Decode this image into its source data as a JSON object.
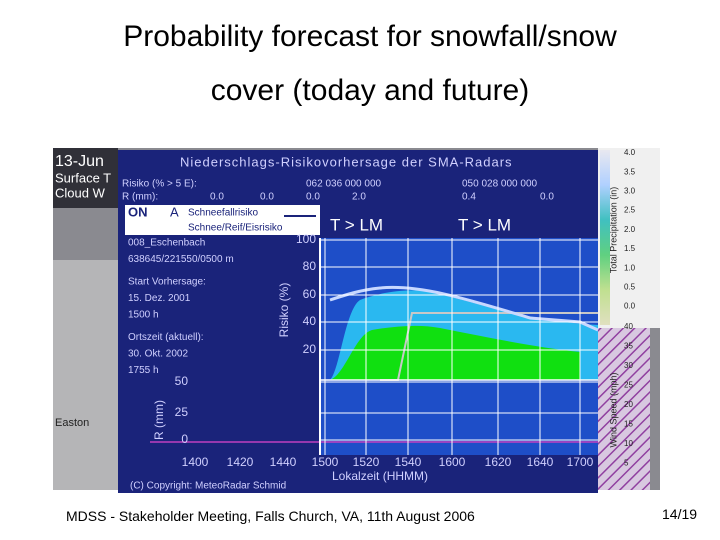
{
  "slide": {
    "title_lines": [
      "Probability forecast for snowfall/snow",
      "cover (today and future)"
    ],
    "footer": "MDSS - Stakeholder Meeting, Falls Church, VA,  11th August 2006",
    "page": "14/19",
    "image": {
      "map_labels": [
        "13-Jun",
        "Surface T",
        "Cloud W",
        "Easton"
      ],
      "chart_title": "Niederschlags-Risikovorhersage der SMA-Radars",
      "risk_row": [
        "Risiko (% > 5 E):",
        "062  036  000  000",
        "050  028  000  000"
      ],
      "rain_row": [
        "R (mm):",
        "0.0",
        "0.0",
        "0.0",
        "2.0",
        "0.4",
        "0.0"
      ],
      "on_label": "ON",
      "a_label": "A",
      "legend": [
        "Schneefallrisiko",
        "Schnee/Reif/Eisrisiko"
      ],
      "panel_labels": [
        "T > LM",
        "T > LM"
      ],
      "station_lines": [
        "008_Eschenbach",
        "638645/221550/0500 m",
        "Start Vorhersage:",
        "15. Dez. 2001",
        "1500 h",
        "Ortszeit (aktuell):",
        "30. Okt. 2002",
        "1755 h"
      ],
      "risk_axis_label": "Risiko (%)",
      "risk_ticks": [
        "100",
        "80",
        "60",
        "40",
        "20"
      ],
      "rain_axis_label": "R (mm)",
      "rain_ticks": [
        "50",
        "25",
        "0"
      ],
      "x_ticks": [
        "1400",
        "1420",
        "1440",
        "1500",
        "1520",
        "1540",
        "1600",
        "1620",
        "1640",
        "1700"
      ],
      "x_axis_label": "Lokalzeit (HHMM)",
      "copyright": "(C) Copyright: MeteoRadar Schmid",
      "precip_label": "Total Precipitation (in)",
      "precip_ticks": [
        "4.0",
        "3.5",
        "3.0",
        "2.5",
        "2.0",
        "1.5",
        "1.0",
        "0.5",
        "0.0"
      ],
      "wind_label": "Wind Speed (mph)",
      "wind_ticks": [
        "40",
        "35",
        "30",
        "25",
        "20",
        "15",
        "10",
        "5"
      ]
    }
  }
}
